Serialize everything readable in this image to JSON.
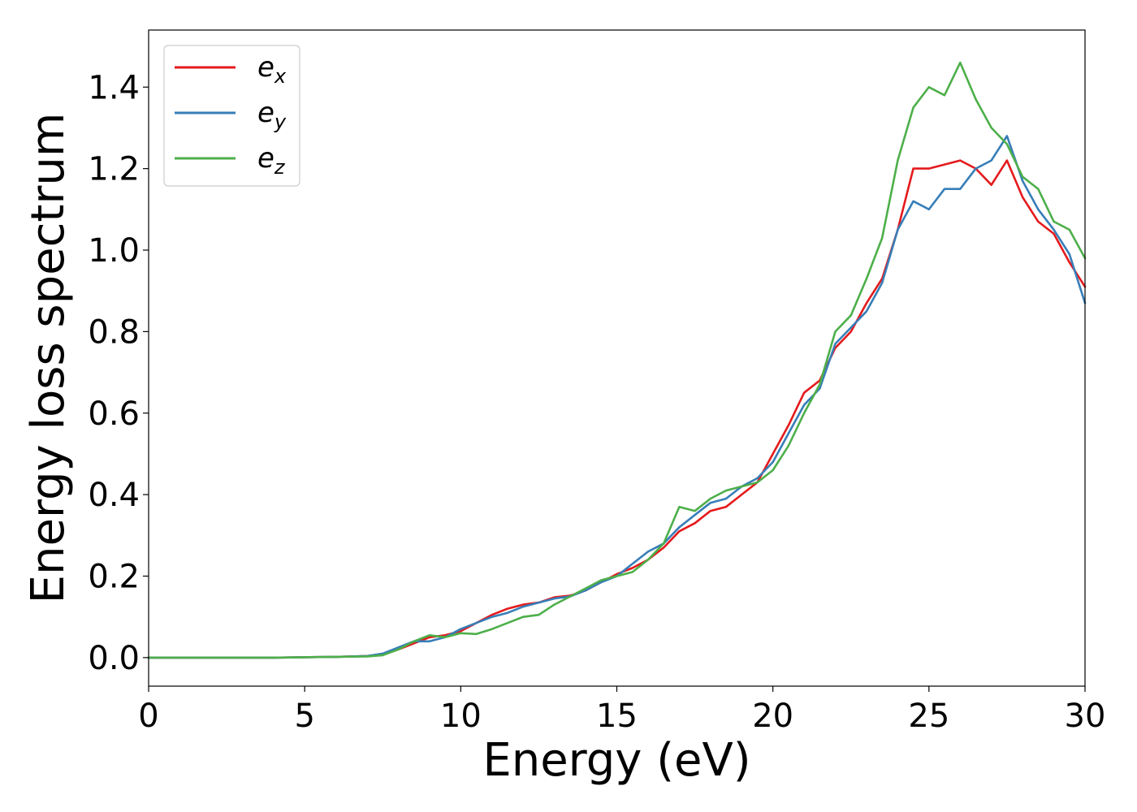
{
  "chart_data": {
    "type": "line",
    "title": "",
    "xlabel": "Energy (eV)",
    "ylabel": "Energy loss spectrum",
    "xlim": [
      0,
      30
    ],
    "ylim": [
      -0.07,
      1.54
    ],
    "xticks": [
      0,
      5,
      10,
      15,
      20,
      25,
      30
    ],
    "xtick_labels": [
      "0",
      "5",
      "10",
      "15",
      "20",
      "25",
      "30"
    ],
    "yticks": [
      0.0,
      0.2,
      0.4,
      0.6,
      0.8,
      1.0,
      1.2,
      1.4
    ],
    "ytick_labels": [
      "0.0",
      "0.2",
      "0.4",
      "0.6",
      "0.8",
      "1.0",
      "1.2",
      "1.4"
    ],
    "grid": false,
    "legend_position": "top-left",
    "series": [
      {
        "name": "e_x",
        "legend_base": "e",
        "legend_sub": "x",
        "color": "#e41a1c",
        "x": [
          0,
          2,
          4,
          6,
          7,
          7.5,
          8,
          8.5,
          9,
          9.5,
          10,
          10.5,
          11,
          11.5,
          12,
          12.5,
          13,
          13.5,
          14,
          14.5,
          15,
          15.5,
          16,
          16.5,
          17,
          17.5,
          18,
          18.5,
          19,
          19.5,
          20,
          20.5,
          21,
          21.5,
          22,
          22.5,
          23,
          23.5,
          24,
          24.5,
          25,
          25.5,
          26,
          26.5,
          27,
          27.5,
          28,
          28.5,
          29,
          29.5,
          30
        ],
        "y": [
          0,
          0,
          0,
          0.002,
          0.004,
          0.008,
          0.02,
          0.035,
          0.05,
          0.055,
          0.065,
          0.085,
          0.105,
          0.12,
          0.13,
          0.135,
          0.148,
          0.152,
          0.165,
          0.185,
          0.205,
          0.22,
          0.24,
          0.27,
          0.31,
          0.33,
          0.36,
          0.37,
          0.4,
          0.43,
          0.5,
          0.57,
          0.65,
          0.68,
          0.76,
          0.8,
          0.87,
          0.93,
          1.05,
          1.2,
          1.2,
          1.21,
          1.22,
          1.2,
          1.16,
          1.22,
          1.13,
          1.07,
          1.04,
          0.97,
          0.91
        ]
      },
      {
        "name": "e_y",
        "legend_base": "e",
        "legend_sub": "y",
        "color": "#377eb8",
        "x": [
          0,
          2,
          4,
          6,
          7,
          7.5,
          8,
          8.5,
          9,
          9.5,
          10,
          10.5,
          11,
          11.5,
          12,
          12.5,
          13,
          13.5,
          14,
          14.5,
          15,
          15.5,
          16,
          16.5,
          17,
          17.5,
          18,
          18.5,
          19,
          19.5,
          20,
          20.5,
          21,
          21.5,
          22,
          22.5,
          23,
          23.5,
          24,
          24.5,
          25,
          25.5,
          26,
          26.5,
          27,
          27.5,
          28,
          28.5,
          29,
          29.5,
          30
        ],
        "y": [
          0,
          0,
          0,
          0.002,
          0.004,
          0.01,
          0.025,
          0.04,
          0.04,
          0.05,
          0.07,
          0.085,
          0.1,
          0.11,
          0.125,
          0.135,
          0.145,
          0.15,
          0.165,
          0.185,
          0.2,
          0.23,
          0.26,
          0.28,
          0.32,
          0.35,
          0.38,
          0.39,
          0.42,
          0.44,
          0.48,
          0.55,
          0.62,
          0.66,
          0.77,
          0.81,
          0.85,
          0.92,
          1.05,
          1.12,
          1.1,
          1.15,
          1.15,
          1.2,
          1.22,
          1.28,
          1.17,
          1.1,
          1.05,
          0.99,
          0.87
        ]
      },
      {
        "name": "e_z",
        "legend_base": "e",
        "legend_sub": "z",
        "color": "#4daf4a",
        "x": [
          0,
          2,
          4,
          6,
          7,
          7.5,
          8,
          8.5,
          9,
          9.5,
          10,
          10.5,
          11,
          11.5,
          12,
          12.5,
          13,
          13.5,
          14,
          14.5,
          15,
          15.5,
          16,
          16.5,
          17,
          17.5,
          18,
          18.5,
          19,
          19.5,
          20,
          20.5,
          21,
          21.5,
          22,
          22.5,
          23,
          23.5,
          24,
          24.5,
          25,
          25.5,
          26,
          26.5,
          27,
          27.5,
          28,
          28.5,
          29,
          29.5,
          30
        ],
        "y": [
          0,
          0,
          0,
          0.002,
          0.003,
          0.006,
          0.02,
          0.04,
          0.055,
          0.05,
          0.06,
          0.058,
          0.07,
          0.085,
          0.1,
          0.105,
          0.13,
          0.15,
          0.17,
          0.19,
          0.2,
          0.21,
          0.24,
          0.28,
          0.37,
          0.36,
          0.39,
          0.41,
          0.42,
          0.43,
          0.46,
          0.52,
          0.6,
          0.67,
          0.8,
          0.84,
          0.93,
          1.03,
          1.22,
          1.35,
          1.4,
          1.38,
          1.46,
          1.37,
          1.3,
          1.26,
          1.18,
          1.15,
          1.07,
          1.05,
          0.98
        ]
      }
    ]
  }
}
